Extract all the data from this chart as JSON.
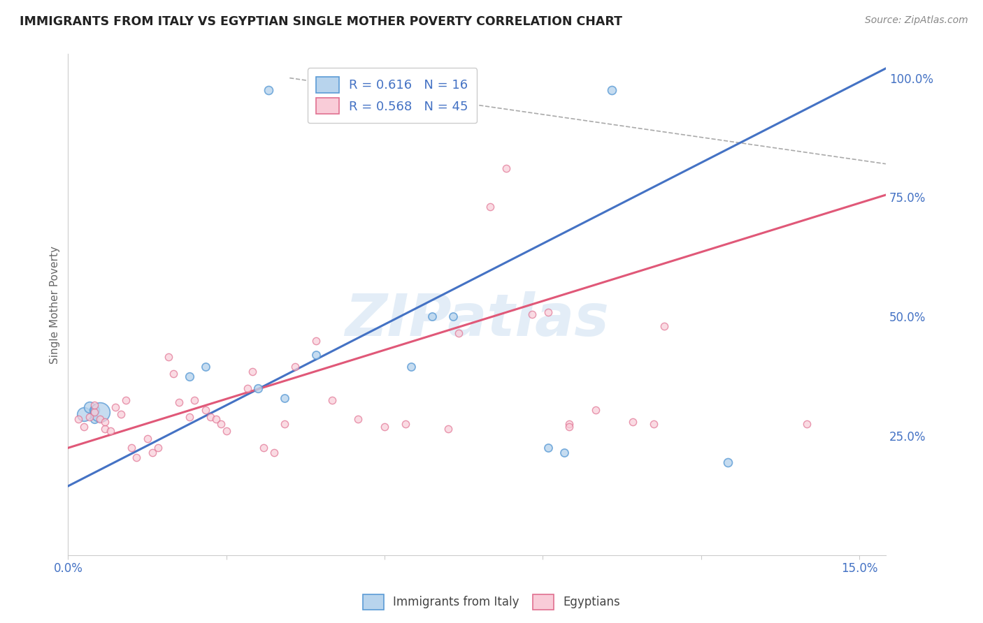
{
  "title": "IMMIGRANTS FROM ITALY VS EGYPTIAN SINGLE MOTHER POVERTY CORRELATION CHART",
  "source": "Source: ZipAtlas.com",
  "ylabel": "Single Mother Poverty",
  "xlim": [
    0.0,
    0.155
  ],
  "ylim": [
    0.0,
    1.05
  ],
  "legend_labels": [
    "Immigrants from Italy",
    "Egyptians"
  ],
  "watermark": "ZIPatlas",
  "blue_color": "#b8d4ed",
  "blue_edge_color": "#5b9bd5",
  "blue_line_color": "#4472c4",
  "pink_color": "#f9ccd8",
  "pink_edge_color": "#e07090",
  "pink_line_color": "#e05878",
  "background_color": "#ffffff",
  "grid_color": "#dddddd",
  "blue_points": [
    [
      0.003,
      0.295,
      200
    ],
    [
      0.004,
      0.31,
      130
    ],
    [
      0.005,
      0.285,
      70
    ],
    [
      0.005,
      0.305,
      100
    ],
    [
      0.006,
      0.3,
      400
    ],
    [
      0.023,
      0.375,
      70
    ],
    [
      0.026,
      0.395,
      65
    ],
    [
      0.036,
      0.35,
      70
    ],
    [
      0.041,
      0.33,
      65
    ],
    [
      0.047,
      0.42,
      65
    ],
    [
      0.065,
      0.395,
      65
    ],
    [
      0.069,
      0.5,
      65
    ],
    [
      0.073,
      0.5,
      65
    ],
    [
      0.091,
      0.225,
      65
    ],
    [
      0.094,
      0.215,
      65
    ],
    [
      0.125,
      0.195,
      75
    ],
    [
      0.038,
      0.975,
      75
    ],
    [
      0.103,
      0.975,
      75
    ]
  ],
  "pink_points": [
    [
      0.002,
      0.285,
      55
    ],
    [
      0.003,
      0.27,
      55
    ],
    [
      0.004,
      0.29,
      55
    ],
    [
      0.005,
      0.3,
      55
    ],
    [
      0.005,
      0.315,
      55
    ],
    [
      0.006,
      0.285,
      55
    ],
    [
      0.007,
      0.265,
      55
    ],
    [
      0.007,
      0.28,
      55
    ],
    [
      0.008,
      0.26,
      55
    ],
    [
      0.009,
      0.31,
      55
    ],
    [
      0.01,
      0.295,
      55
    ],
    [
      0.011,
      0.325,
      55
    ],
    [
      0.012,
      0.225,
      55
    ],
    [
      0.013,
      0.205,
      55
    ],
    [
      0.015,
      0.245,
      55
    ],
    [
      0.016,
      0.215,
      55
    ],
    [
      0.017,
      0.225,
      55
    ],
    [
      0.019,
      0.415,
      55
    ],
    [
      0.02,
      0.38,
      55
    ],
    [
      0.021,
      0.32,
      55
    ],
    [
      0.023,
      0.29,
      55
    ],
    [
      0.024,
      0.325,
      55
    ],
    [
      0.026,
      0.305,
      55
    ],
    [
      0.027,
      0.29,
      55
    ],
    [
      0.028,
      0.285,
      55
    ],
    [
      0.029,
      0.275,
      55
    ],
    [
      0.03,
      0.26,
      55
    ],
    [
      0.034,
      0.35,
      55
    ],
    [
      0.035,
      0.385,
      55
    ],
    [
      0.037,
      0.225,
      55
    ],
    [
      0.039,
      0.215,
      55
    ],
    [
      0.041,
      0.275,
      55
    ],
    [
      0.043,
      0.395,
      55
    ],
    [
      0.047,
      0.45,
      55
    ],
    [
      0.05,
      0.325,
      55
    ],
    [
      0.055,
      0.285,
      55
    ],
    [
      0.06,
      0.27,
      55
    ],
    [
      0.064,
      0.275,
      55
    ],
    [
      0.072,
      0.265,
      55
    ],
    [
      0.074,
      0.465,
      55
    ],
    [
      0.08,
      0.73,
      55
    ],
    [
      0.083,
      0.81,
      55
    ],
    [
      0.088,
      0.505,
      55
    ],
    [
      0.091,
      0.51,
      55
    ],
    [
      0.095,
      0.275,
      55
    ],
    [
      0.1,
      0.305,
      55
    ],
    [
      0.107,
      0.28,
      55
    ],
    [
      0.111,
      0.275,
      55
    ],
    [
      0.113,
      0.48,
      55
    ],
    [
      0.095,
      0.27,
      55
    ],
    [
      0.14,
      0.275,
      55
    ]
  ],
  "blue_line_x0": 0.0,
  "blue_line_y0": 0.145,
  "blue_line_x1": 0.155,
  "blue_line_y1": 1.02,
  "pink_line_x0": 0.0,
  "pink_line_y0": 0.225,
  "pink_line_x1": 0.155,
  "pink_line_y1": 0.755,
  "dash_line_x0": 0.042,
  "dash_line_y0": 1.0,
  "dash_line_x1": 0.155,
  "dash_line_y1": 0.82
}
